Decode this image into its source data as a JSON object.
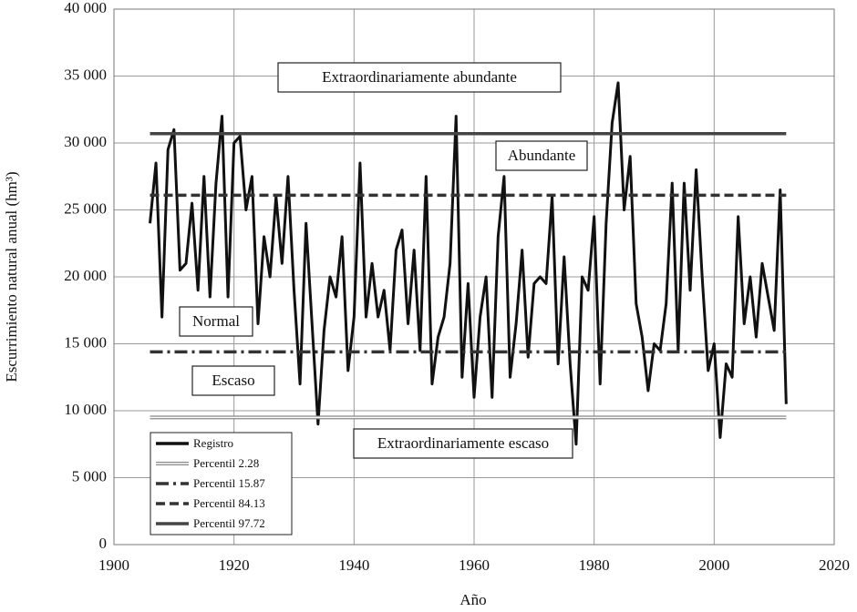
{
  "chart_data": {
    "type": "line",
    "x_label": "Año",
    "y_label": "Escurrimiento natural anual (hm³)",
    "xlim": [
      1900,
      2020
    ],
    "xticks": [
      1900,
      1920,
      1940,
      1960,
      1980,
      2000,
      2020
    ],
    "ylim": [
      0,
      40000
    ],
    "yticks": [
      0,
      {
        "value": 5000,
        "label": "5 000"
      },
      {
        "value": 10000,
        "label": "10 000"
      },
      {
        "value": 15000,
        "label": "15 000"
      },
      {
        "value": 20000,
        "label": "20 000"
      },
      {
        "value": 25000,
        "label": "25 000"
      },
      {
        "value": 30000,
        "label": "30 000"
      },
      {
        "value": 35000,
        "label": "35 000"
      },
      {
        "value": 40000,
        "label": "40 000"
      }
    ],
    "grid": true,
    "legend": "lower left",
    "series": [
      {
        "name": "Registro",
        "color": "#111111",
        "line_style": "solid",
        "x": [
          1906,
          1907,
          1908,
          1909,
          1910,
          1911,
          1912,
          1913,
          1914,
          1915,
          1916,
          1917,
          1918,
          1919,
          1920,
          1921,
          1922,
          1923,
          1924,
          1925,
          1926,
          1927,
          1928,
          1929,
          1930,
          1931,
          1932,
          1933,
          1934,
          1935,
          1936,
          1937,
          1938,
          1939,
          1940,
          1941,
          1942,
          1943,
          1944,
          1945,
          1946,
          1947,
          1948,
          1949,
          1950,
          1951,
          1952,
          1953,
          1954,
          1955,
          1956,
          1957,
          1958,
          1959,
          1960,
          1961,
          1962,
          1963,
          1964,
          1965,
          1966,
          1967,
          1968,
          1969,
          1970,
          1971,
          1972,
          1973,
          1974,
          1975,
          1976,
          1977,
          1978,
          1979,
          1980,
          1981,
          1982,
          1983,
          1984,
          1985,
          1986,
          1987,
          1988,
          1989,
          1990,
          1991,
          1992,
          1993,
          1994,
          1995,
          1996,
          1997,
          1998,
          1999,
          2000,
          2001,
          2002,
          2003,
          2004,
          2005,
          2006,
          2007,
          2008,
          2009,
          2010,
          2011,
          2012
        ],
        "values": [
          24000,
          28500,
          17000,
          29500,
          31000,
          20500,
          21000,
          25500,
          19000,
          27500,
          18500,
          27000,
          32000,
          18500,
          30000,
          30500,
          25000,
          27500,
          16500,
          23000,
          20000,
          26000,
          21000,
          27500,
          19000,
          12000,
          24000,
          16500,
          9000,
          16000,
          20000,
          18500,
          23000,
          13000,
          17000,
          28500,
          17000,
          21000,
          17000,
          19000,
          14500,
          22000,
          23500,
          16500,
          22000,
          14500,
          27500,
          12000,
          15500,
          17000,
          21000,
          32000,
          12500,
          19500,
          11000,
          17000,
          20000,
          11000,
          23000,
          27500,
          12500,
          16500,
          22000,
          14000,
          19500,
          20000,
          19500,
          26000,
          13500,
          21500,
          13500,
          7500,
          20000,
          19000,
          24500,
          12000,
          24000,
          31500,
          34500,
          25000,
          29000,
          18000,
          15500,
          11500,
          15000,
          14500,
          18000,
          27000,
          14500,
          27000,
          19000,
          28000,
          20000,
          13000,
          15000,
          8000,
          13500,
          12500,
          24500,
          16500,
          20000,
          15500,
          21000,
          18500,
          16000,
          26500,
          10500
        ]
      },
      {
        "name": "Percentil 2.28",
        "color": "#888888",
        "line_style": "double",
        "x": [
          1906,
          2012
        ],
        "values": [
          9500,
          9500
        ]
      },
      {
        "name": "Percentil 15.87",
        "color": "#333333",
        "line_style": "dash-dot",
        "x": [
          1906,
          2012
        ],
        "values": [
          14400,
          14400
        ]
      },
      {
        "name": "Percentil 84.13",
        "color": "#333333",
        "line_style": "dash",
        "x": [
          1906,
          2012
        ],
        "values": [
          26100,
          26100
        ]
      },
      {
        "name": "Percentil 97.72",
        "color": "#444444",
        "line_style": "solid",
        "x": [
          1906,
          2012
        ],
        "values": [
          30700,
          30700
        ]
      }
    ],
    "annotations": [
      "Extraordinariamente abundante",
      "Abundante",
      "Normal",
      "Escaso",
      "Extraordinariamente escaso"
    ]
  }
}
